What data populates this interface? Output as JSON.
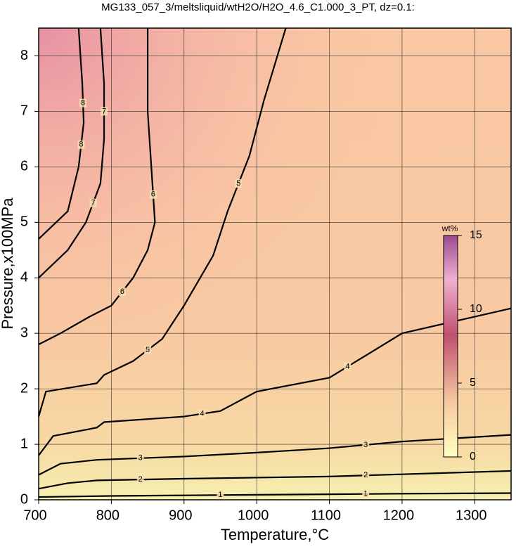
{
  "chart_data": {
    "type": "contour",
    "title": "MG133_057_3/meltsliquid/wtH2O/H2O_4.6_C1.000_3_PT, dz=0.1:",
    "xlabel": "Temperature,°C",
    "ylabel": "Pressure,x100MPa",
    "xlim": [
      700,
      1350
    ],
    "ylim": [
      0,
      8.5
    ],
    "xticks": [
      700,
      800,
      900,
      1000,
      1100,
      1200,
      1300
    ],
    "yticks": [
      0,
      1,
      2,
      3,
      4,
      5,
      6,
      7,
      8
    ],
    "grid": true,
    "colorbar": {
      "label": "wt%",
      "lim": [
        0,
        15
      ],
      "ticks": [
        0,
        5,
        10,
        15
      ]
    },
    "contours": [
      {
        "level": 1,
        "x": [
          700,
          800,
          900,
          1000,
          1100,
          1200,
          1350
        ],
        "y": [
          0.05,
          0.07,
          0.08,
          0.09,
          0.1,
          0.11,
          0.12
        ]
      },
      {
        "level": 2,
        "x": [
          700,
          740,
          780,
          900,
          1000,
          1100,
          1200,
          1350
        ],
        "y": [
          0.2,
          0.3,
          0.35,
          0.38,
          0.4,
          0.42,
          0.46,
          0.52
        ]
      },
      {
        "level": 3,
        "x": [
          700,
          730,
          780,
          900,
          1000,
          1100,
          1200,
          1350
        ],
        "y": [
          0.45,
          0.65,
          0.72,
          0.78,
          0.85,
          0.93,
          1.05,
          1.17
        ]
      },
      {
        "level": 4,
        "x": [
          700,
          720,
          780,
          790,
          900,
          950,
          1000,
          1100,
          1150,
          1200,
          1350
        ],
        "y": [
          0.8,
          1.15,
          1.3,
          1.4,
          1.5,
          1.6,
          1.95,
          2.2,
          2.6,
          3.0,
          3.45
        ]
      },
      {
        "level": 5,
        "x": [
          700,
          710,
          780,
          790,
          830,
          870,
          900,
          940,
          960,
          990,
          1010,
          1040
        ],
        "y": [
          1.5,
          1.95,
          2.1,
          2.25,
          2.5,
          2.9,
          3.5,
          4.4,
          5.2,
          6.2,
          7.2,
          8.5
        ]
      },
      {
        "level": 6,
        "x": [
          700,
          730,
          770,
          800,
          830,
          850,
          860,
          855,
          850,
          850
        ],
        "y": [
          2.8,
          3.0,
          3.3,
          3.5,
          4.0,
          4.5,
          5.0,
          6.0,
          7.0,
          8.5
        ]
      },
      {
        "level": 7,
        "x": [
          700,
          740,
          765,
          785,
          790,
          790,
          785
        ],
        "y": [
          4.0,
          4.5,
          5.0,
          5.7,
          6.5,
          7.5,
          8.5
        ]
      },
      {
        "level": 8,
        "x": [
          700,
          740,
          755,
          762,
          760,
          755
        ],
        "y": [
          4.7,
          5.2,
          6.0,
          6.8,
          7.5,
          8.5
        ]
      }
    ]
  }
}
